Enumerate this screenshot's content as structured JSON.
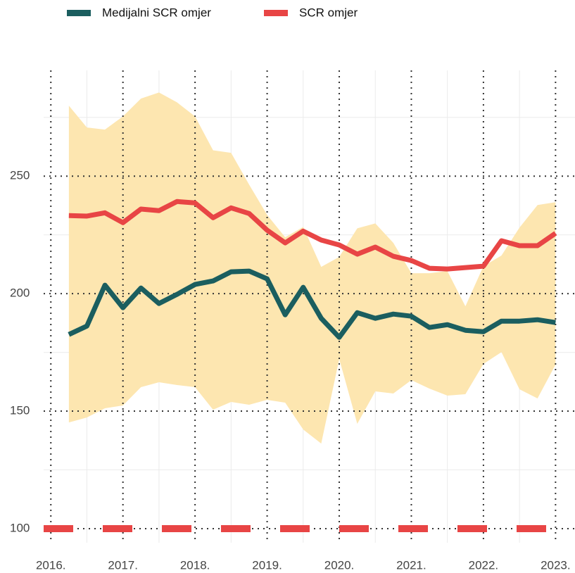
{
  "chart_data": {
    "type": "line",
    "x": [
      2016.25,
      2016.5,
      2016.75,
      2017,
      2017.25,
      2017.5,
      2017.75,
      2018,
      2018.25,
      2018.5,
      2018.75,
      2019,
      2019.25,
      2019.5,
      2019.75,
      2020,
      2020.25,
      2020.5,
      2020.75,
      2021,
      2021.25,
      2021.5,
      2021.75,
      2022,
      2022.25,
      2022.5,
      2022.75,
      2023
    ],
    "series": [
      {
        "name": "Medijalni SCR omjer",
        "color": "#1b5e5f",
        "values": [
          182.6,
          186.2,
          203.6,
          194,
          202.4,
          195.8,
          199.7,
          203.9,
          205.4,
          209.3,
          209.6,
          206.3,
          191,
          202.7,
          189.5,
          181.4,
          191.9,
          189.5,
          191.3,
          190.4,
          185.6,
          186.8,
          184.4,
          183.8,
          188.3,
          188.3,
          188.9,
          187.7
        ]
      },
      {
        "name": "SCR omjer",
        "color": "#e84545",
        "values": [
          233.2,
          233,
          234.4,
          230.2,
          236,
          235.3,
          239.2,
          238.6,
          232.3,
          236.5,
          234.1,
          227,
          221.6,
          226.6,
          222.8,
          220.7,
          216.8,
          219.8,
          215.9,
          214.1,
          210.8,
          210.5,
          211.1,
          211.7,
          222.5,
          220.4,
          220.4,
          225.7
        ]
      }
    ],
    "band": {
      "color": "#fde6b0",
      "upper": [
        280,
        270.7,
        269.8,
        275.4,
        283,
        285.6,
        281.4,
        275.4,
        261,
        259.9,
        246.4,
        233.5,
        224,
        228.4,
        211.4,
        215.6,
        227.8,
        229.9,
        221.6,
        208.7,
        208.7,
        209.6,
        194.6,
        211.7,
        216.2,
        228.1,
        237.7,
        238.9
      ],
      "lower": [
        145.2,
        147.3,
        151.2,
        152.4,
        160.2,
        162.3,
        161.1,
        160.2,
        150.6,
        153.9,
        152.7,
        154.8,
        153.6,
        142.2,
        136.2,
        172.2,
        144.6,
        158.4,
        157.5,
        163.2,
        159.6,
        156.6,
        157.2,
        170.1,
        175.1,
        159.3,
        155.4,
        169.8
      ]
    },
    "threshold": 100,
    "threshold_color": "#e84545",
    "xlim": [
      2015.9,
      2023.27
    ],
    "xticks": [
      {
        "value": 2016,
        "label": "2016."
      },
      {
        "value": 2017,
        "label": "2017."
      },
      {
        "value": 2018,
        "label": "2018."
      },
      {
        "value": 2019,
        "label": "2019."
      },
      {
        "value": 2020,
        "label": "2020."
      },
      {
        "value": 2021,
        "label": "2021."
      },
      {
        "value": 2022,
        "label": "2022."
      },
      {
        "value": 2023,
        "label": "2023."
      }
    ],
    "xminorticks": [
      2016.5,
      2017.5,
      2018.5,
      2019.5,
      2020.5,
      2021.5,
      2022.5
    ],
    "ylim": [
      94,
      295
    ],
    "yticks": [
      100,
      150,
      200,
      250
    ],
    "yminorticks": [
      125,
      175,
      225,
      275
    ],
    "grid": true
  }
}
